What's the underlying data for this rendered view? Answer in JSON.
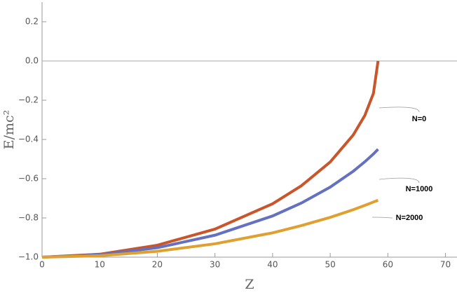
{
  "chart_data": {
    "type": "line",
    "xlabel": "Z",
    "ylabel": "E/mc²",
    "x": [
      0,
      10,
      20,
      30,
      40,
      45,
      50,
      54,
      56,
      57.5,
      58.3
    ],
    "series": [
      {
        "name": "N=0",
        "color": "#c8562a",
        "values": [
          -1,
          -0.985,
          -0.939,
          -0.857,
          -0.728,
          -0.636,
          -0.515,
          -0.377,
          -0.278,
          -0.165,
          0
        ]
      },
      {
        "name": "N=1000",
        "color": "#6470c0",
        "values": [
          -1,
          -0.988,
          -0.952,
          -0.888,
          -0.79,
          -0.724,
          -0.643,
          -0.562,
          -0.514,
          -0.474,
          -0.45
        ]
      },
      {
        "name": "N=2000",
        "color": "#e0a030",
        "values": [
          -1,
          -0.993,
          -0.97,
          -0.932,
          -0.876,
          -0.839,
          -0.797,
          -0.758,
          -0.736,
          -0.719,
          -0.71
        ]
      }
    ],
    "xlim": [
      0,
      72
    ],
    "ylim": [
      -1,
      0.3
    ],
    "xticks": [
      0,
      10,
      20,
      30,
      40,
      50,
      60,
      70
    ],
    "yticks": [
      {
        "value": -1,
        "label": "−1.0"
      },
      {
        "value": -0.8,
        "label": "−0.8"
      },
      {
        "value": -0.6,
        "label": "−0.6"
      },
      {
        "value": -0.4,
        "label": "−0.4"
      },
      {
        "value": -0.2,
        "label": "−0.2"
      },
      {
        "value": 0,
        "label": "0.0"
      },
      0.2
    ]
  }
}
